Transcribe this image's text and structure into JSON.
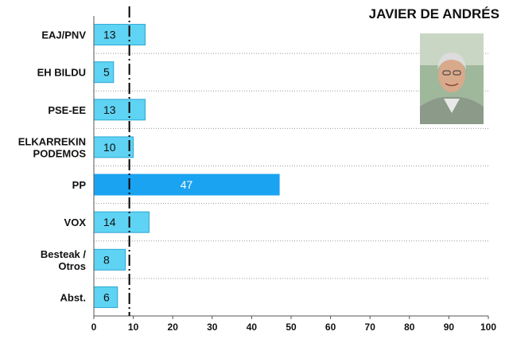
{
  "title": "JAVIER DE ANDRÉS",
  "photo": {
    "description": "portrait-photo"
  },
  "colors": {
    "bar_light": "#5fd3f3",
    "bar_light_edge": "#2aa7d4",
    "bar_highlight": "#1aa3f0",
    "reference_line": "#000000",
    "grid": "#9a9a9a"
  },
  "chart_data": {
    "type": "bar",
    "orientation": "horizontal",
    "categories": [
      [
        "EAJ/PNV"
      ],
      [
        "EH BILDU"
      ],
      [
        "PSE-EE"
      ],
      [
        "ELKARREKIN",
        "PODEMOS"
      ],
      [
        "PP"
      ],
      [
        "VOX"
      ],
      [
        "Besteak /",
        "Otros"
      ],
      [
        "Abst."
      ]
    ],
    "values": [
      13,
      5,
      13,
      10,
      47,
      14,
      8,
      6
    ],
    "highlight_index": 4,
    "reference_value": 9,
    "xlim": [
      0,
      100
    ],
    "xticks": [
      0,
      10,
      20,
      30,
      40,
      50,
      60,
      70,
      80,
      90,
      100
    ],
    "grid": true,
    "title": "",
    "xlabel": "",
    "ylabel": ""
  }
}
